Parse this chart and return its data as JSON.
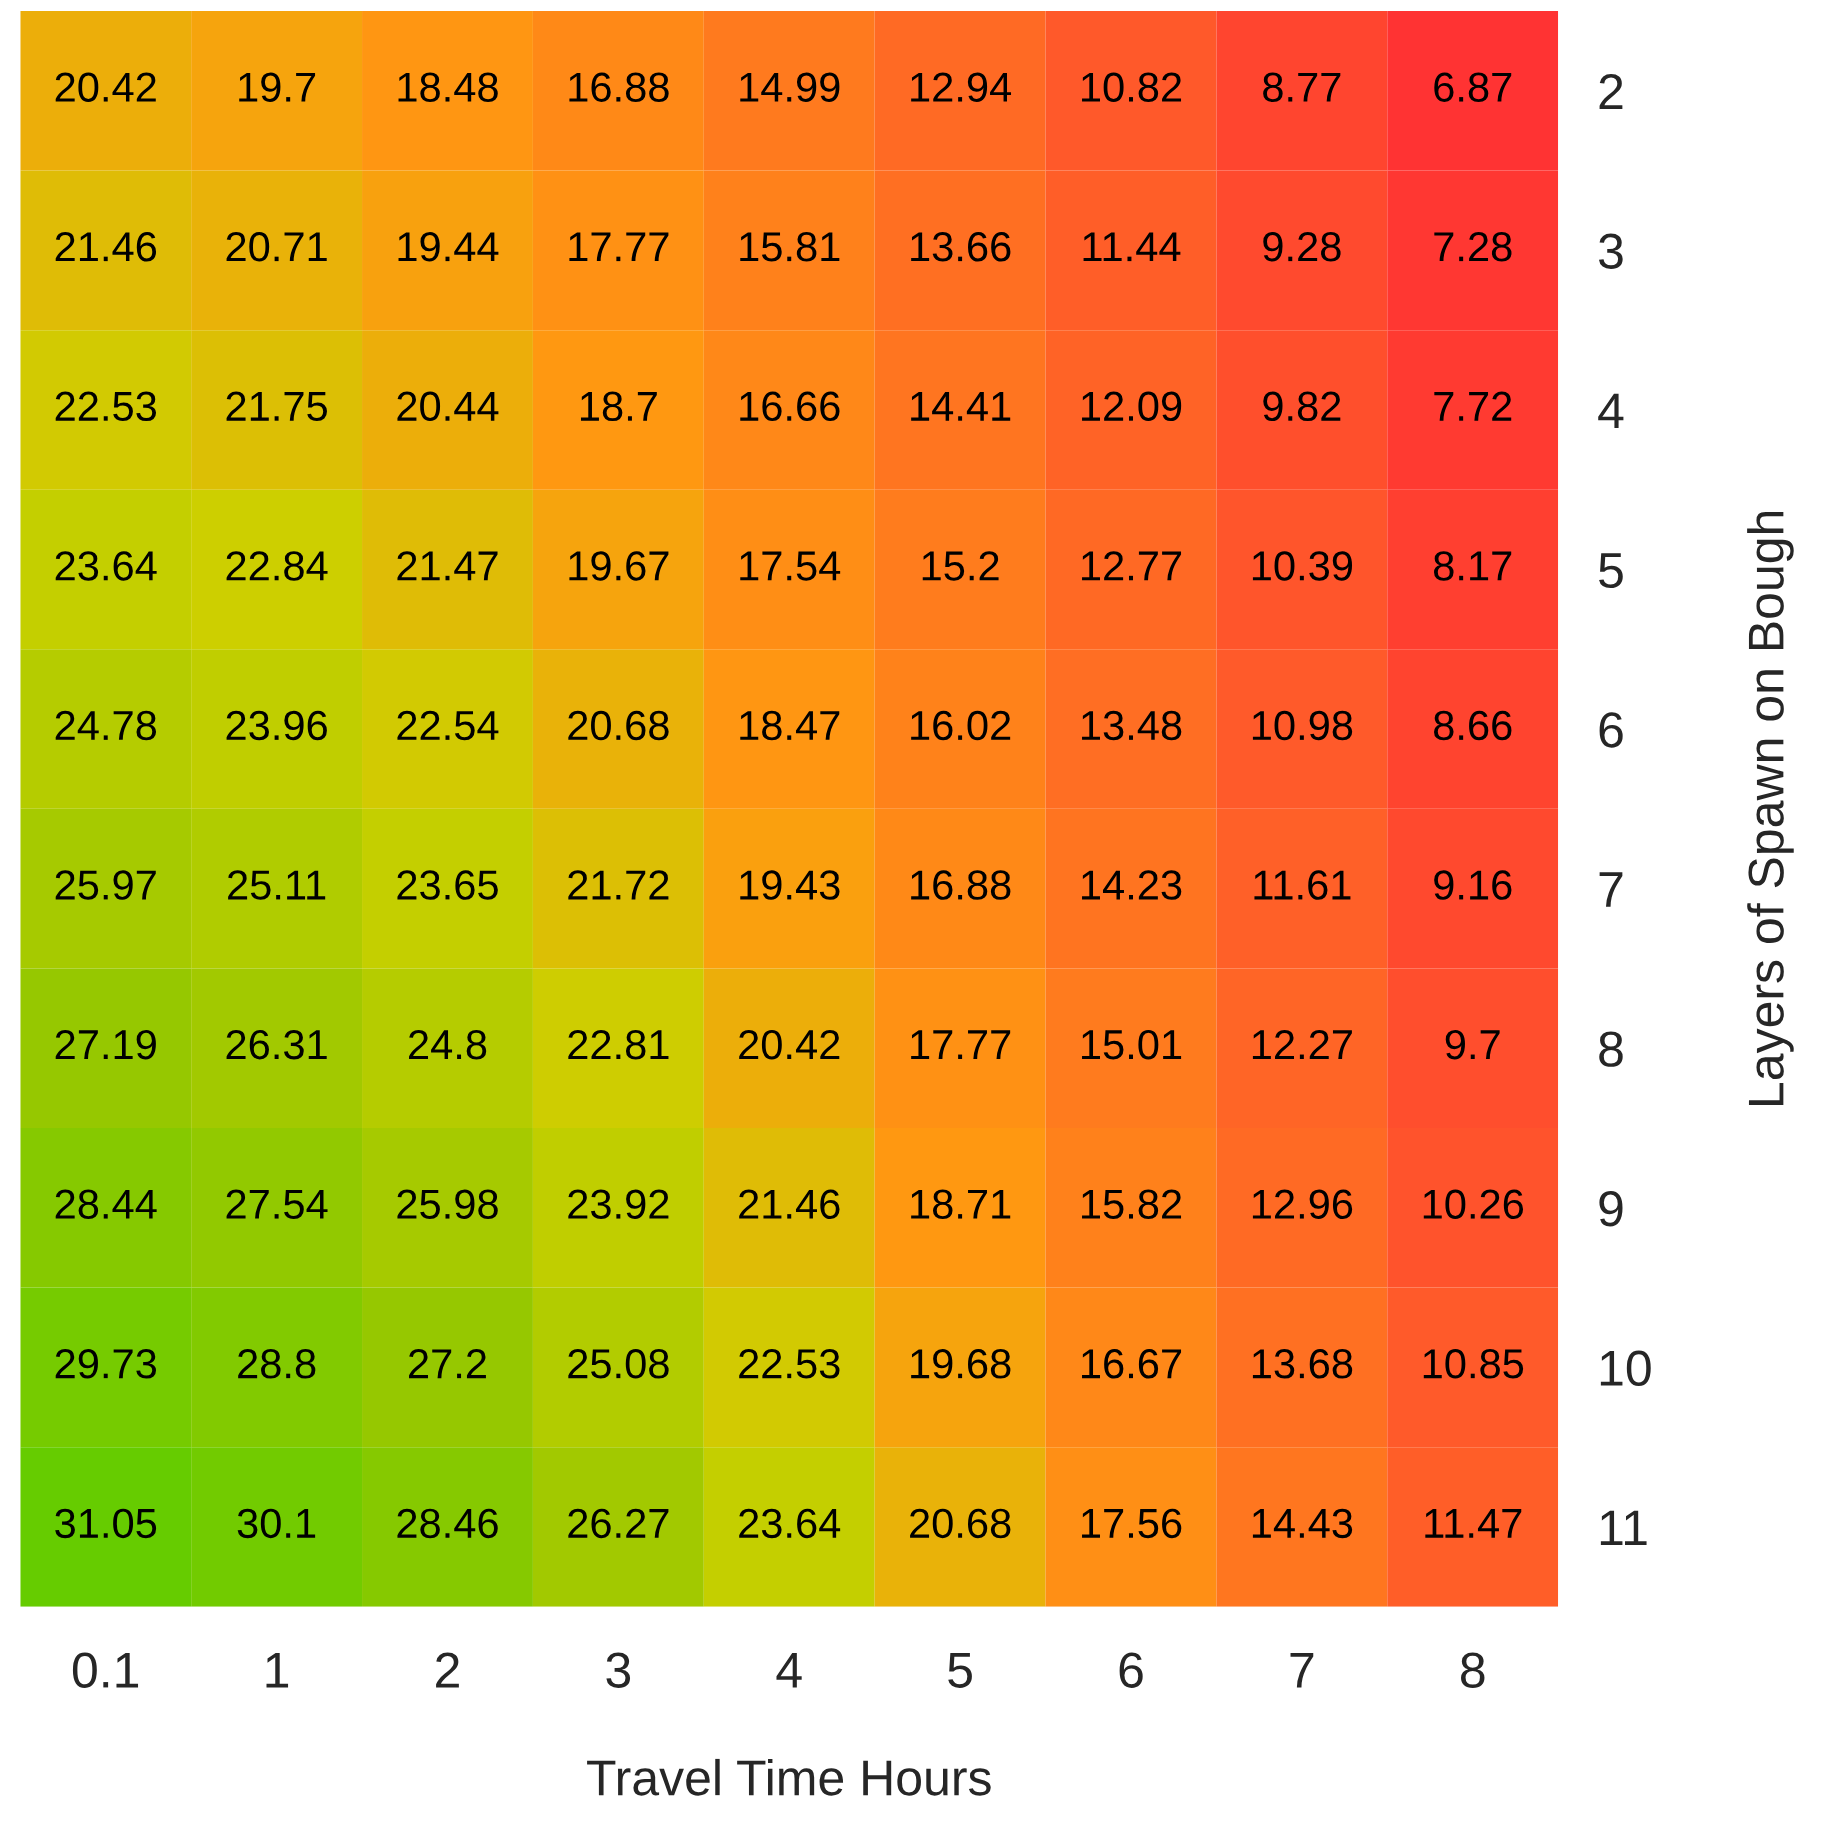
{
  "chart_data": {
    "type": "heatmap",
    "xlabel": "Travel Time Hours",
    "ylabel": "Layers of Spawn on Bough",
    "categories": [
      "0.1",
      "1",
      "2",
      "3",
      "4",
      "5",
      "6",
      "7",
      "8"
    ],
    "y_categories": [
      "2",
      "3",
      "4",
      "5",
      "6",
      "7",
      "8",
      "9",
      "10",
      "11"
    ],
    "cells": [
      [
        20.42,
        19.7,
        18.48,
        16.88,
        14.99,
        12.94,
        10.82,
        8.77,
        6.87
      ],
      [
        21.46,
        20.71,
        19.44,
        17.77,
        15.81,
        13.66,
        11.44,
        9.28,
        7.28
      ],
      [
        22.53,
        21.75,
        20.44,
        18.7,
        16.66,
        14.41,
        12.09,
        9.82,
        7.72
      ],
      [
        23.64,
        22.84,
        21.47,
        19.67,
        17.54,
        15.2,
        12.77,
        10.39,
        8.17
      ],
      [
        24.78,
        23.96,
        22.54,
        20.68,
        18.47,
        16.02,
        13.48,
        10.98,
        8.66
      ],
      [
        25.97,
        25.11,
        23.65,
        21.72,
        19.43,
        16.88,
        14.23,
        11.61,
        9.16
      ],
      [
        27.19,
        26.31,
        24.8,
        22.81,
        20.42,
        17.77,
        15.01,
        12.27,
        9.7
      ],
      [
        28.44,
        27.54,
        25.98,
        23.92,
        21.46,
        18.71,
        15.82,
        12.96,
        10.26
      ],
      [
        29.73,
        28.8,
        27.2,
        25.08,
        22.53,
        19.68,
        16.67,
        13.68,
        10.85
      ],
      [
        31.05,
        30.1,
        28.46,
        26.27,
        23.64,
        20.68,
        17.56,
        14.43,
        11.47
      ]
    ],
    "colors": [
      "#ff3333",
      "#ff5a2a",
      "#ff7a1e",
      "#ff9a10",
      "#ccd000",
      "#99c800",
      "#66cc00"
    ],
    "data_labels": true
  }
}
